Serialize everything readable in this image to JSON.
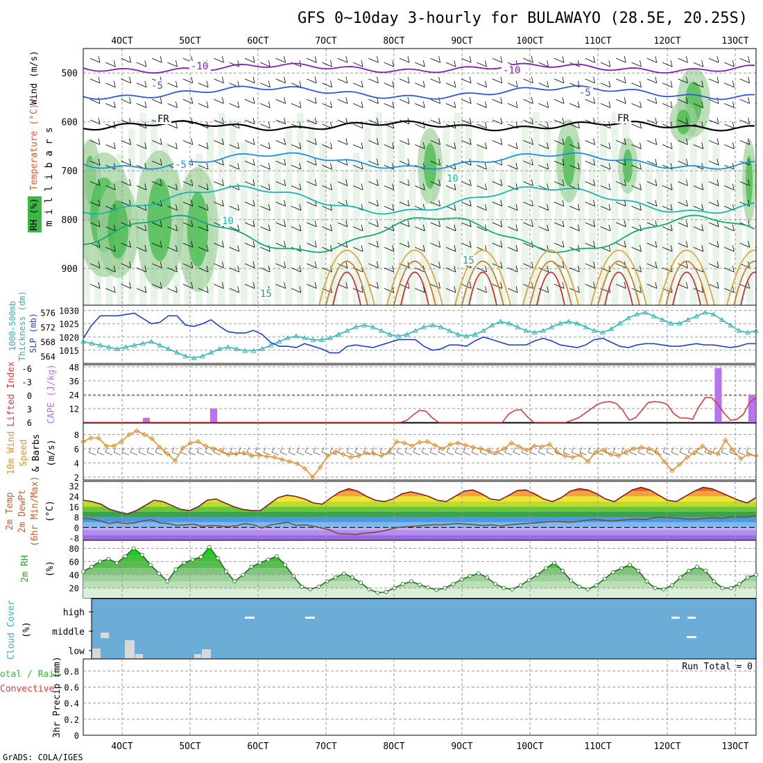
{
  "title": "GFS 0~10day 3-hourly for BULAWAYO (28.5E, 20.25S)",
  "credit": "GrADS: COLA/IGES",
  "colors": {
    "rh_green": "#3cb843",
    "cool_band": "#4c9be0",
    "warm_band": "#f2a13c",
    "slp": "#1c3fd0",
    "thickness": "#2fb6b6",
    "cape": "#b873f2",
    "lifted_index": "#d93a3a",
    "wind_speed": "#e5902a",
    "rh2m": "#2ca02c",
    "cloud_bg": "#6badd6"
  },
  "chart_data": [
    {
      "type": "heatmap",
      "name": "upper-air cross-section",
      "ylabel": "millibars",
      "side_labels": [
        "Wind (m/s)",
        "Temperature (°C)",
        "RH (%)"
      ],
      "yticks": [
        500,
        600,
        700,
        800,
        900
      ],
      "xticks": [
        "4OCT",
        "5OCT",
        "6OCT",
        "7OCT",
        "8OCT",
        "9OCT",
        "10OCT",
        "11OCT",
        "12OCT",
        "13OCT"
      ],
      "temperature_contour_labels": [
        "-10",
        "-10",
        "-5",
        "-5",
        "FR",
        "FR",
        "-5",
        "10",
        "10",
        "15",
        "15"
      ],
      "contour_levels_c": [
        -10,
        -5,
        0,
        5,
        10,
        15,
        20,
        25,
        30
      ]
    },
    {
      "type": "line",
      "name": "thickness and slp",
      "left_axis_label": "1000-500mb Thickness (dm)",
      "right_axis_label": "SLP (mb)",
      "left_ticks": [
        564,
        568,
        572,
        576
      ],
      "right_ticks": [
        1015,
        1020,
        1025,
        1030
      ],
      "slp_hpa": [
        1019.5,
        1024.5,
        1028,
        1028,
        1028,
        1028.5,
        1029,
        1027,
        1025,
        1025.5,
        1028,
        1028,
        1024.5,
        1024,
        1025,
        1026.5,
        1024,
        1022,
        1021.5,
        1021.5,
        1022.5,
        1021,
        1018,
        1016.5,
        1016.5,
        1016,
        1017.5,
        1016.5,
        1015.5,
        1014,
        1014,
        1016.5,
        1017,
        1016.5,
        1016,
        1017,
        1018,
        1019,
        1019,
        1019,
        1016.5,
        1015,
        1015.5,
        1017,
        1017,
        1016.5,
        1018.5,
        1020,
        1019,
        1018,
        1017,
        1017,
        1017,
        1018.5,
        1019.5,
        1018.5,
        1017,
        1016.5,
        1016,
        1017,
        1019,
        1019.5,
        1018,
        1016.5,
        1016,
        1017,
        1017.5,
        1017.5,
        1017,
        1016.5,
        1016.5,
        1017,
        1017.5,
        1017,
        1017,
        1016.5,
        1016,
        1016.5,
        1017.5,
        1017.5
      ],
      "thickness_dm": [
        568,
        567.5,
        567,
        566.5,
        566,
        566.5,
        567,
        567.5,
        568,
        567,
        566,
        565,
        564,
        563.5,
        564,
        565,
        566,
        566.5,
        566,
        565.5,
        565.5,
        566,
        567,
        568,
        569,
        569.5,
        569,
        568.5,
        568.5,
        569,
        570,
        571,
        572,
        572.5,
        572,
        571,
        570,
        569.5,
        570,
        571,
        572,
        572.5,
        572,
        571,
        570,
        569.5,
        570,
        571,
        572.5,
        573.5,
        573,
        572,
        571,
        570.5,
        571,
        572,
        573,
        573.5,
        573,
        572,
        571,
        570.5,
        571.5,
        573,
        574.5,
        575.5,
        576,
        575,
        574,
        573,
        573,
        574,
        575,
        576,
        575.5,
        574,
        572.5,
        571,
        570.5,
        571
      ]
    },
    {
      "type": "bar",
      "name": "cape and lifted index",
      "left_axis_label": "Lifted Index",
      "right_axis_label": "CAPE (J/kg)",
      "left_ticks": [
        "-6",
        "-3",
        "0",
        "3",
        "6"
      ],
      "right_ticks": [
        "12",
        "24",
        "36",
        "48"
      ],
      "cape_jkg": [
        0,
        0,
        0,
        0,
        0,
        0,
        0,
        4,
        0,
        0,
        0,
        0,
        0,
        0,
        0,
        12,
        0,
        0,
        0,
        0,
        0,
        0,
        0,
        0,
        0,
        0,
        0,
        0,
        0,
        0,
        0,
        0,
        0,
        0,
        0,
        0,
        0,
        0,
        0,
        0,
        0,
        0,
        0,
        0,
        0,
        0,
        0,
        0,
        0,
        0,
        0,
        0,
        0,
        0,
        0,
        0,
        0,
        0,
        0,
        0,
        0,
        0,
        0,
        0,
        0,
        0,
        0,
        0,
        0,
        0,
        0,
        0,
        0,
        0,
        0,
        47,
        1,
        0,
        0,
        24
      ],
      "lifted_index": [
        6,
        6,
        6,
        6,
        6,
        6,
        6,
        6,
        6,
        6,
        6,
        6,
        6,
        6,
        6,
        6,
        6,
        6,
        6,
        6,
        6,
        6,
        6,
        6,
        6,
        6,
        6,
        6,
        6,
        6,
        6,
        6,
        6,
        6,
        6,
        6,
        6,
        6,
        6,
        6,
        6,
        6,
        6,
        6,
        6,
        6,
        6,
        6,
        6,
        6,
        6,
        5.5,
        4.3,
        3.3,
        3.5,
        5,
        6,
        6,
        6,
        6,
        6,
        6,
        6,
        6,
        6,
        6,
        6,
        4.2,
        3.3,
        3.2,
        4.8,
        6,
        6,
        6,
        6,
        6,
        6,
        5.5,
        5,
        4,
        3,
        2,
        1.5,
        1.4,
        1.8,
        3.3,
        5.5,
        5,
        3.3,
        1.6,
        1.4,
        1.5,
        2,
        4,
        5,
        5,
        5.3,
        2.5,
        0.5,
        0.5,
        2,
        4,
        5.5,
        5.3,
        4.2,
        1.5,
        0.5
      ]
    },
    {
      "type": "line",
      "name": "10m wind",
      "left_axis_label": "10m Wind Speed & Barbs",
      "units": "(m/s)",
      "yticks": [
        2,
        4,
        6,
        8
      ],
      "speed_ms": [
        7,
        7.5,
        7.5,
        6.4,
        6.4,
        7,
        8,
        8.5,
        8,
        7.4,
        6.2,
        5.3,
        4.3,
        6.1,
        6.8,
        7,
        6.4,
        6,
        5.7,
        5.2,
        5.3,
        5.4,
        5,
        5.1,
        4.9,
        4.8,
        4.5,
        4.2,
        3.9,
        3.2,
        2,
        3.4,
        5,
        5.6,
        5.2,
        4.8,
        5,
        5.4,
        5.3,
        5,
        5.5,
        7,
        6.8,
        6.4,
        6.9,
        7,
        6.5,
        6,
        6.6,
        6.8,
        6.5,
        6.2,
        6,
        5.7,
        5.4,
        6,
        6.8,
        6.3,
        5.8,
        6.4,
        6.3,
        6.6,
        5.5,
        5,
        4.8,
        5.1,
        4.2,
        5.5,
        5.8,
        5.2,
        5,
        5.6,
        6,
        6.2,
        6,
        5.5,
        4.2,
        2.9,
        3.8,
        4.8,
        5.5,
        6.4,
        5.5,
        5.3,
        7.2,
        5.8,
        4.6,
        5.2,
        5
      ]
    },
    {
      "type": "area",
      "name": "2m temperature and dewpoint",
      "left_axis_label": "2m Temp 2m DewPt (6hr Min/Max) (°C)",
      "yticks": [
        -8,
        0,
        8,
        16,
        24,
        32
      ],
      "temp_c": [
        21,
        20,
        18,
        14,
        12,
        10.5,
        13,
        17,
        21,
        20,
        17,
        14,
        13,
        16,
        21,
        22,
        19,
        16,
        14,
        13,
        13,
        18,
        23,
        25,
        24,
        22,
        19,
        18,
        23,
        27.5,
        30,
        28,
        24,
        21,
        20,
        22,
        26,
        27.5,
        26,
        24,
        21,
        20,
        24,
        28,
        29,
        26,
        22,
        21,
        24.5,
        28.5,
        29,
        26,
        22,
        20,
        23,
        28,
        30,
        29,
        26,
        22,
        20,
        24.5,
        29,
        31,
        29,
        25,
        21,
        20,
        24,
        28,
        31,
        30,
        27,
        24,
        21,
        19,
        23
      ],
      "dewpoint_c": [
        7,
        6.5,
        5,
        3,
        4,
        3,
        3.5,
        5,
        6,
        3.5,
        3,
        1.5,
        2,
        2.5,
        0.8,
        1.5,
        1.2,
        0.5,
        1.5,
        3,
        2,
        -0.5,
        2,
        3,
        4,
        1.5,
        2,
        1,
        -0.5,
        -2,
        -5,
        -5,
        -5.5,
        -4.5,
        -4,
        -3,
        -1.5,
        0,
        0.5,
        1,
        1.5,
        2,
        2,
        2.5,
        3,
        2.5,
        2,
        1.5,
        2,
        1,
        2,
        2.5,
        3,
        3.5,
        4,
        4.5,
        4.5,
        4,
        4.5,
        5.5,
        6,
        5.5,
        5,
        5.5,
        6,
        6.5,
        6,
        7.5,
        8,
        7.5,
        7,
        6.5,
        6.5,
        7,
        7.5,
        7,
        8,
        8,
        8,
        9
      ]
    },
    {
      "type": "area",
      "name": "2m relative humidity",
      "left_axis_label": "2m RH",
      "units": "(%)",
      "yticks": [
        20,
        40,
        60,
        80
      ],
      "rh_pct": [
        45,
        52,
        60,
        64,
        58,
        68,
        80,
        70,
        55,
        42,
        30,
        48,
        58,
        63,
        67,
        82,
        65,
        45,
        30,
        40,
        52,
        58,
        63,
        68,
        55,
        38,
        22,
        18,
        22,
        30,
        36,
        42,
        36,
        28,
        18,
        13,
        14,
        20,
        26,
        30,
        25,
        21,
        17,
        20,
        26,
        33,
        38,
        42,
        36,
        26,
        20,
        18,
        24,
        32,
        40,
        50,
        58,
        46,
        31,
        22,
        18,
        24,
        34,
        44,
        50,
        55,
        46,
        30,
        20,
        18,
        24,
        36,
        46,
        52,
        46,
        30,
        20,
        20,
        26,
        36,
        40
      ]
    },
    {
      "type": "bar",
      "name": "cloud cover",
      "left_axis_label": "Cloud Cover",
      "units": "(%)",
      "levels": [
        "high",
        "middle",
        "low"
      ]
    },
    {
      "type": "bar",
      "name": "3hr precip",
      "left_axis_label": "3hr Precip (mm)",
      "legend_left_lines": [
        "Total / Rain",
        "Convective"
      ],
      "yticks": [
        "0",
        "0.2",
        "0.4",
        "0.6",
        "0.8"
      ],
      "annotation": "Run Total = 0",
      "values_mm": []
    }
  ]
}
